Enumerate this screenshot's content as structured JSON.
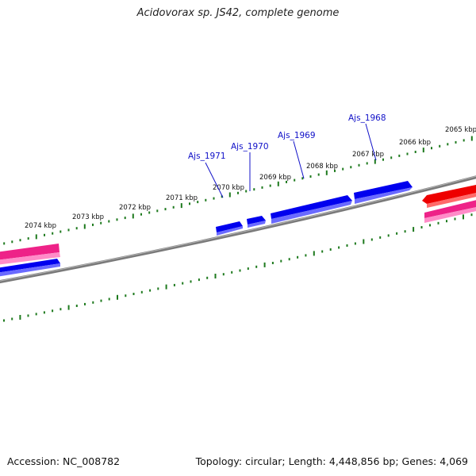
{
  "title": "Acidovorax sp. JS42, complete genome",
  "footer": {
    "accession": "Accession: NC_008782",
    "summary": "Topology: circular; Length: 4,448,856 bp; Genes: 4,069"
  },
  "colors": {
    "backbone": "#7a7a7a",
    "ticks": "#1e7a1e",
    "gene_blue": "#0000ee",
    "gene_pink": "#ee2288",
    "gene_red": "#ee0000",
    "label": "#1010c8"
  },
  "scale_labels": [
    "2074 kbp",
    "2073 kbp",
    "2072 kbp",
    "2071 kbp",
    "2070 kbp",
    "2069 kbp",
    "2068 kbp",
    "2067 kbp",
    "2066 kbp",
    "2065 kbp"
  ],
  "gene_labels": [
    "Ajs_1971",
    "Ajs_1970",
    "Ajs_1969",
    "Ajs_1968"
  ]
}
